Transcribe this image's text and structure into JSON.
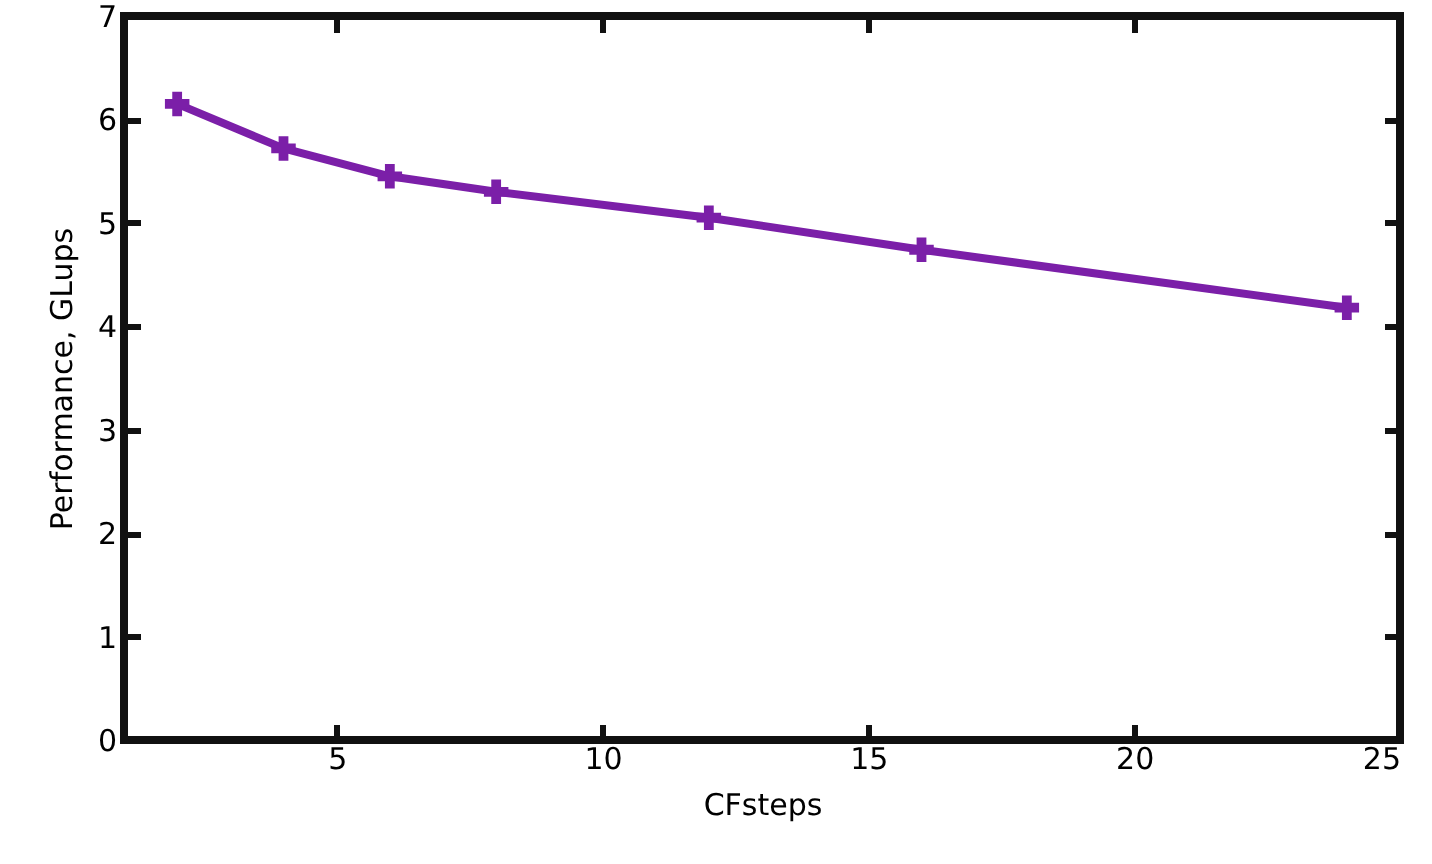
{
  "chart_data": {
    "type": "line",
    "xlabel": "CFsteps",
    "ylabel": "Performance, GLups",
    "x": [
      2,
      4,
      6,
      8,
      12,
      16,
      24
    ],
    "series": [
      {
        "color": "#7b1fa8",
        "values": [
          6.15,
          5.72,
          5.45,
          5.3,
          5.05,
          4.74,
          4.18
        ]
      }
    ],
    "xlim": [
      1,
      25
    ],
    "xticks": [
      5,
      10,
      15,
      20,
      25
    ],
    "ylim": [
      0,
      7
    ],
    "yticks": [
      0,
      1,
      2,
      3,
      4,
      5,
      6,
      7
    ],
    "grid": false,
    "marker": "cross",
    "line_style": "solid"
  }
}
